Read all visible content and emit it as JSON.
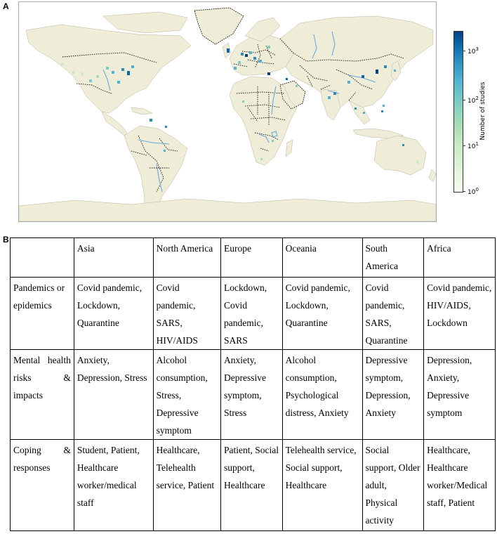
{
  "panel_a": {
    "label": "A",
    "colorbar": {
      "title": "Number of studies",
      "ticks": [
        {
          "base": "10",
          "exp": "3"
        },
        {
          "base": "10",
          "exp": "2"
        },
        {
          "base": "10",
          "exp": "1"
        },
        {
          "base": "10",
          "exp": "0"
        }
      ],
      "colors": [
        "#f7fcf0",
        "#ccebc5",
        "#7bccc4",
        "#2b8cbe",
        "#084081"
      ]
    },
    "map": {
      "land_color": "#efecd7",
      "water_color": "#ffffff",
      "river_color": "#6aaae0",
      "border_style": "dotted"
    }
  },
  "panel_b": {
    "label": "B",
    "headers": [
      "",
      "Asia",
      "North America",
      "Europe",
      "Oceania",
      "South America",
      "Africa"
    ],
    "rows": [
      {
        "label": "Pandemics or epidemics",
        "cells": [
          "Covid pandemic, Lockdown, Quarantine",
          "Covid pandemic, SARS, HIV/AIDS",
          "Lockdown, Covid pandemic, SARS",
          "Covid pandemic, Lockdown, Quarantine",
          "Covid pandemic, SARS, Quarantine",
          "Covid pandemic, HIV/AIDS, Lockdown"
        ]
      },
      {
        "label": "Mental health risks & impacts",
        "cells": [
          "Anxiety, Depression, Stress",
          "Alcohol consumption, Stress, Depressive symptom",
          "Anxiety, Depressive symptom, Stress",
          "Alcohol consumption, Psychological distress, Anxiety",
          "Depressive symptom, Depression, Anxiety",
          "Depression, Anxiety, Depressive symptom"
        ]
      },
      {
        "label": "Coping & responses",
        "cells": [
          "Student, Patient, Healthcare worker/medical staff",
          "Healthcare, Telehealth service, Patient",
          "Patient, Social support, Healthcare",
          "Telehealth service, Social support, Healthcare",
          "Social support, Older adult, Physical activity",
          "Healthcare, Healthcare worker/Medical staff, Patient"
        ]
      }
    ]
  }
}
